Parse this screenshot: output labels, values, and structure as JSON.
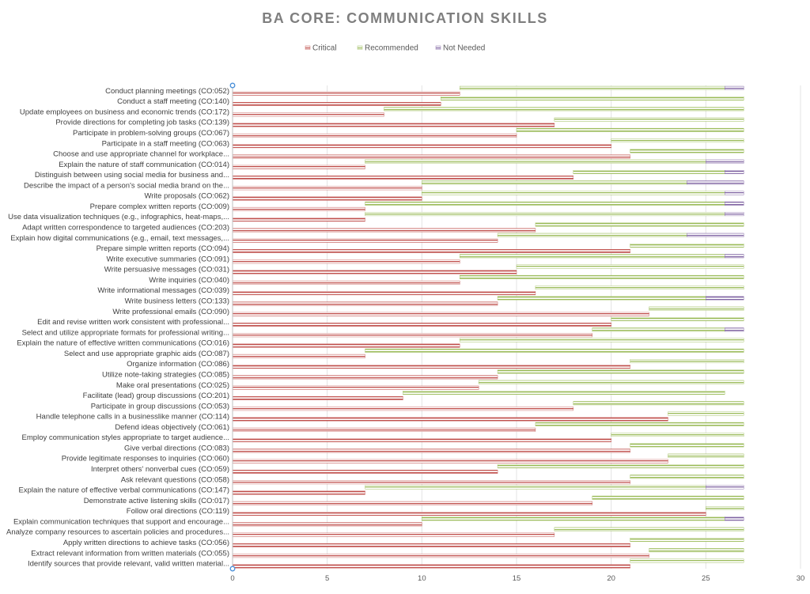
{
  "chart_data": {
    "type": "bar",
    "orientation": "horizontal",
    "title": "BA CORE: COMMUNICATION SKILLS",
    "xlim": [
      0,
      30
    ],
    "x_ticks": [
      "0",
      "5",
      "10",
      "15",
      "20",
      "25",
      "30"
    ],
    "grid": "vertical",
    "legend_position": "top",
    "categories": [
      "Conduct planning meetings (CO:052)",
      "Conduct a staff meeting (CO:140)",
      "Update employees on business and economic trends (CO:172)",
      "Provide directions for completing job tasks (CO:139)",
      "Participate in problem-solving groups (CO:067)",
      "Participate in a staff meeting (CO:063)",
      "Choose and use appropriate channel for workplace...",
      "Explain the nature of staff communication (CO:014)",
      "Distinguish between using social media for business and...",
      "Describe the impact of a person's social media brand on the...",
      "Write proposals (CO:062)",
      "Prepare complex written reports (CO:009)",
      "Use data visualization techniques (e.g., infographics, heat-maps,...",
      "Adapt written correspondence to targeted audiences (CO:203)",
      "Explain how digital communications (e.g., email, text messages,...",
      "Prepare simple written reports (CO:094)",
      "Write executive summaries (CO:091)",
      "Write persuasive messages (CO:031)",
      "Write inquiries (CO:040)",
      "Write informational messages (CO:039)",
      "Write business letters (CO:133)",
      "Write professional emails (CO:090)",
      "Edit and revise written work consistent with professional...",
      "Select and utilize appropriate formats for professional writing...",
      "Explain the nature of effective written communications (CO:016)",
      "Select and use appropriate graphic aids (CO:087)",
      "Organize information (CO:086)",
      "Utilize note-taking strategies (CO:085)",
      "Make oral presentations (CO:025)",
      "Facilitate (lead) group discussions (CO:201)",
      "Participate in group discussions (CO:053)",
      "Handle telephone calls in a businesslike manner (CO:114)",
      "Defend ideas objectively (CO:061)",
      "Employ communication styles appropriate to target audience...",
      "Give verbal directions (CO:083)",
      "Provide legitimate responses to inquiries (CO:060)",
      "Interpret others' nonverbal cues (CO:059)",
      "Ask relevant questions (CO:058)",
      "Explain the nature of effective verbal communications (CO:147)",
      "Demonstrate active listening skills (CO:017)",
      "Follow oral directions (CO:119)",
      "Explain communication techniques that support and encourage...",
      "Analyze company resources to ascertain policies and procedures...",
      "Apply written directions to achieve tasks (CO:056)",
      "Extract relevant information from written materials (CO:055)",
      "Identify sources that provide relevant, valid written material..."
    ],
    "series": [
      {
        "name": "Critical",
        "color": "#c0504d",
        "values": [
          12,
          11,
          8,
          17,
          15,
          20,
          21,
          7,
          18,
          10,
          10,
          7,
          7,
          16,
          14,
          21,
          12,
          15,
          12,
          16,
          14,
          22,
          20,
          19,
          12,
          7,
          21,
          14,
          13,
          9,
          18,
          23,
          16,
          20,
          21,
          23,
          14,
          21,
          7,
          19,
          25,
          10,
          17,
          21,
          22,
          21
        ]
      },
      {
        "name": "Recommended",
        "color": "#9bbb59",
        "values": [
          14,
          16,
          19,
          10,
          12,
          7,
          6,
          18,
          8,
          14,
          16,
          19,
          19,
          11,
          10,
          6,
          14,
          12,
          15,
          11,
          11,
          5,
          7,
          7,
          15,
          20,
          6,
          13,
          14,
          17,
          9,
          4,
          11,
          7,
          6,
          4,
          13,
          6,
          18,
          8,
          2,
          16,
          10,
          6,
          5,
          6
        ]
      },
      {
        "name": "Not Needed",
        "color": "#8064a2",
        "values": [
          1,
          0,
          0,
          0,
          0,
          0,
          0,
          2,
          1,
          3,
          1,
          1,
          1,
          0,
          3,
          0,
          1,
          0,
          0,
          0,
          2,
          0,
          0,
          1,
          0,
          0,
          0,
          0,
          0,
          0,
          0,
          0,
          0,
          0,
          0,
          0,
          0,
          0,
          2,
          0,
          0,
          1,
          0,
          0,
          0,
          0
        ]
      }
    ]
  }
}
